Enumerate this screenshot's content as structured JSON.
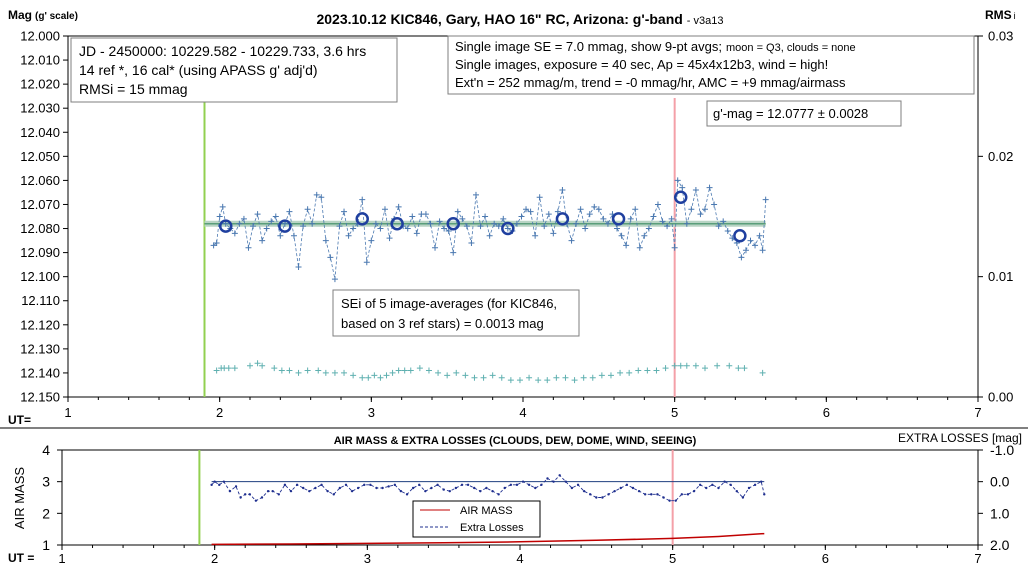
{
  "colors": {
    "accent_green": "#92d050",
    "accent_red": "#f4a0a8",
    "trend_green": "#5a9e7a",
    "data_blue": "#4a78b0",
    "avg_circle": "#1f3f9f",
    "check_teal": "#5fb0b0",
    "airmass_red": "#c00000",
    "loss_blue": "#1f2f8f"
  },
  "top_chart": {
    "title_main": "2023.10.12 KIC846, Gary, HAO 16\" RC, Arizona: g'-band",
    "title_suffix": "- v3a13",
    "y_label": "Mag",
    "y_label_suffix": "(g' scale)",
    "y2_label": "RMS",
    "y2_label_suffix": "i",
    "x_label": "UT=",
    "box_left": [
      "JD - 2450000: 10229.582 - 10229.733, 3.6 hrs",
      "14 ref *, 16 cal* (using APASS g' adj'd)",
      "RMSi = 15 mmag"
    ],
    "box_right_line1": "Single image SE = 7.0 mmag, show  9-pt avgs;",
    "box_right_line1_small": "moon = Q3, clouds = none",
    "box_right_lines": [
      "Single images, exposure = 40 sec, Ap = 45x4x12b3, wind = high!",
      "Ext'n = 252 mmag/m, trend = -0 mmag/hr, AMC = +9 mmag/airmass"
    ],
    "box_mag": "g'-mag = 12.0777 ± 0.0028",
    "box_sei": [
      "SEi of 5 image-averages (for KIC846,",
      "based on 3 ref stars) = 0.0013 mag"
    ]
  },
  "bottom_chart": {
    "title": "AIR MASS & EXTRA LOSSES (CLOUDS, DEW, DOME, WIND, SEEING)",
    "y_label": "AIR MASS",
    "y2_label": "EXTRA LOSSES [mag]",
    "x_label": "UT =",
    "legend": [
      "AIR MASS",
      "Extra Losses"
    ]
  },
  "chart_data": [
    {
      "type": "scatter",
      "title": "2023.10.12 KIC846, Gary, HAO 16\" RC, Arizona: g'-band",
      "xlabel": "UT=",
      "ylabel": "Mag (g' scale)",
      "y2label": "RMSi",
      "xlim": [
        1,
        7
      ],
      "ylim": [
        12.15,
        12.0
      ],
      "y2lim": [
        0,
        0.03
      ],
      "x_ticks": [
        "1",
        "2",
        "3",
        "4",
        "5",
        "6",
        "7"
      ],
      "y_ticks": [
        "12.000",
        "12.010",
        "12.020",
        "12.030",
        "12.040",
        "12.050",
        "12.060",
        "12.070",
        "12.080",
        "12.090",
        "12.100",
        "12.110",
        "12.120",
        "12.130",
        "12.140",
        "12.150"
      ],
      "y2_ticks": [
        "0.00",
        "0.01",
        "0.02",
        "0.03"
      ],
      "vlines": [
        1.9,
        5.0
      ],
      "trend": {
        "x": [
          1.9,
          5.6
        ],
        "y": [
          12.078,
          12.078
        ]
      },
      "series": [
        {
          "name": "single images",
          "x": [
            1.96,
            1.98,
            2.0,
            2.02,
            2.04,
            2.07,
            2.1,
            2.13,
            2.16,
            2.19,
            2.22,
            2.25,
            2.28,
            2.31,
            2.34,
            2.37,
            2.4,
            2.43,
            2.46,
            2.49,
            2.52,
            2.55,
            2.58,
            2.61,
            2.64,
            2.67,
            2.7,
            2.73,
            2.76,
            2.79,
            2.82,
            2.85,
            2.88,
            2.91,
            2.94,
            2.97,
            3.0,
            3.03,
            3.06,
            3.09,
            3.12,
            3.15,
            3.18,
            3.21,
            3.24,
            3.27,
            3.3,
            3.33,
            3.36,
            3.39,
            3.42,
            3.45,
            3.48,
            3.51,
            3.54,
            3.57,
            3.6,
            3.63,
            3.66,
            3.69,
            3.72,
            3.75,
            3.78,
            3.81,
            3.84,
            3.87,
            3.9,
            3.93,
            3.96,
            3.99,
            4.02,
            4.05,
            4.08,
            4.11,
            4.14,
            4.17,
            4.2,
            4.23,
            4.26,
            4.29,
            4.32,
            4.35,
            4.38,
            4.41,
            4.44,
            4.47,
            4.5,
            4.53,
            4.56,
            4.59,
            4.62,
            4.65,
            4.68,
            4.71,
            4.74,
            4.77,
            4.8,
            4.83,
            4.86,
            4.89,
            4.92,
            4.95,
            4.98,
            5.0,
            5.02,
            5.05,
            5.08,
            5.11,
            5.14,
            5.17,
            5.2,
            5.23,
            5.26,
            5.29,
            5.32,
            5.35,
            5.38,
            5.41,
            5.44,
            5.47,
            5.5,
            5.53,
            5.56,
            5.58,
            5.6
          ],
          "y": [
            12.087,
            12.086,
            12.075,
            12.071,
            12.078,
            12.08,
            12.082,
            12.078,
            12.076,
            12.088,
            12.079,
            12.074,
            12.085,
            12.08,
            12.077,
            12.075,
            12.083,
            12.078,
            12.073,
            12.083,
            12.096,
            12.079,
            12.072,
            12.078,
            12.066,
            12.067,
            12.085,
            12.092,
            12.101,
            12.079,
            12.073,
            12.083,
            12.08,
            12.078,
            12.068,
            12.094,
            12.085,
            12.078,
            12.08,
            12.072,
            12.084,
            12.076,
            12.071,
            12.079,
            12.08,
            12.075,
            12.082,
            12.074,
            12.074,
            12.078,
            12.088,
            12.077,
            12.08,
            12.081,
            12.09,
            12.073,
            12.076,
            12.079,
            12.086,
            12.066,
            12.079,
            12.075,
            12.083,
            12.078,
            12.079,
            12.076,
            12.08,
            12.081,
            12.078,
            12.075,
            12.072,
            12.073,
            12.083,
            12.067,
            12.079,
            12.074,
            12.082,
            12.073,
            12.064,
            12.078,
            12.085,
            12.078,
            12.072,
            12.08,
            12.074,
            12.071,
            12.072,
            12.076,
            12.078,
            12.074,
            12.08,
            12.083,
            12.087,
            12.076,
            12.072,
            12.088,
            12.083,
            12.08,
            12.075,
            12.07,
            12.077,
            12.079,
            12.076,
            12.088,
            12.06,
            12.063,
            12.078,
            12.072,
            12.064,
            12.074,
            12.072,
            12.063,
            12.07,
            12.079,
            12.077,
            12.081,
            12.084,
            12.086,
            12.092,
            12.089,
            12.085,
            12.087,
            12.083,
            12.089,
            12.068
          ]
        },
        {
          "name": "9-pt avgs",
          "x": [
            2.04,
            2.43,
            2.94,
            3.17,
            3.54,
            3.9,
            4.26,
            4.63,
            5.04,
            5.43
          ],
          "y": [
            12.079,
            12.079,
            12.076,
            12.078,
            12.078,
            12.08,
            12.076,
            12.076,
            12.067,
            12.083
          ]
        },
        {
          "name": "check star",
          "x": [
            1.98,
            2.01,
            2.03,
            2.06,
            2.1,
            2.2,
            2.25,
            2.28,
            2.36,
            2.41,
            2.46,
            2.52,
            2.58,
            2.65,
            2.7,
            2.76,
            2.82,
            2.88,
            2.94,
            2.98,
            3.02,
            3.06,
            3.1,
            3.14,
            3.18,
            3.22,
            3.26,
            3.32,
            3.38,
            3.44,
            3.5,
            3.56,
            3.62,
            3.68,
            3.74,
            3.8,
            3.86,
            3.92,
            3.98,
            4.04,
            4.1,
            4.16,
            4.22,
            4.28,
            4.34,
            4.4,
            4.46,
            4.52,
            4.58,
            4.64,
            4.7,
            4.76,
            4.82,
            4.88,
            4.94,
            5.0,
            5.04,
            5.08,
            5.14,
            5.2,
            5.28,
            5.36,
            5.42,
            5.46,
            5.58
          ],
          "y": [
            12.139,
            12.138,
            12.138,
            12.138,
            12.138,
            12.137,
            12.136,
            12.137,
            12.138,
            12.139,
            12.139,
            12.14,
            12.139,
            12.139,
            12.14,
            12.14,
            12.14,
            12.141,
            12.142,
            12.142,
            12.141,
            12.142,
            12.141,
            12.14,
            12.139,
            12.139,
            12.139,
            12.138,
            12.139,
            12.14,
            12.141,
            12.14,
            12.141,
            12.142,
            12.142,
            12.141,
            12.142,
            12.143,
            12.143,
            12.142,
            12.143,
            12.143,
            12.142,
            12.142,
            12.143,
            12.142,
            12.142,
            12.141,
            12.141,
            12.14,
            12.14,
            12.139,
            12.139,
            12.139,
            12.138,
            12.137,
            12.137,
            12.137,
            12.137,
            12.138,
            12.137,
            12.137,
            12.138,
            12.138,
            12.14
          ]
        }
      ]
    },
    {
      "type": "line",
      "title": "AIR MASS & EXTRA LOSSES (CLOUDS, DEW, DOME, WIND, SEEING)",
      "xlabel": "UT =",
      "ylabel": "AIR MASS",
      "y2label": "EXTRA LOSSES [mag]",
      "xlim": [
        1,
        7
      ],
      "ylim": [
        1,
        4
      ],
      "y2lim": [
        2.0,
        -1.0
      ],
      "x_ticks": [
        "1",
        "2",
        "3",
        "4",
        "5",
        "6",
        "7"
      ],
      "y_ticks": [
        "1",
        "2",
        "3",
        "4"
      ],
      "y2_ticks": [
        "-1.0",
        "0.0",
        "1.0",
        "2.0"
      ],
      "vlines": [
        1.9,
        5.0
      ],
      "legend": "center",
      "series": [
        {
          "name": "AIR MASS",
          "axis": "left",
          "x": [
            1.98,
            2.5,
            3.0,
            3.5,
            4.0,
            4.5,
            5.0,
            5.3,
            5.6
          ],
          "y": [
            1.02,
            1.03,
            1.05,
            1.07,
            1.1,
            1.15,
            1.21,
            1.27,
            1.36
          ]
        },
        {
          "name": "Extra Losses",
          "axis": "right",
          "x": [
            1.98,
            2.0,
            2.03,
            2.06,
            2.1,
            2.14,
            2.17,
            2.2,
            2.23,
            2.27,
            2.31,
            2.35,
            2.38,
            2.42,
            2.46,
            2.5,
            2.54,
            2.58,
            2.62,
            2.66,
            2.7,
            2.74,
            2.78,
            2.82,
            2.86,
            2.9,
            2.94,
            2.98,
            3.02,
            3.06,
            3.1,
            3.14,
            3.18,
            3.22,
            3.26,
            3.3,
            3.34,
            3.38,
            3.42,
            3.46,
            3.5,
            3.54,
            3.58,
            3.62,
            3.66,
            3.7,
            3.74,
            3.78,
            3.82,
            3.86,
            3.9,
            3.94,
            3.98,
            4.02,
            4.06,
            4.1,
            4.14,
            4.18,
            4.22,
            4.26,
            4.3,
            4.34,
            4.38,
            4.42,
            4.46,
            4.5,
            4.54,
            4.58,
            4.62,
            4.66,
            4.7,
            4.74,
            4.78,
            4.82,
            4.86,
            4.9,
            4.94,
            4.98,
            5.02,
            5.06,
            5.1,
            5.14,
            5.18,
            5.22,
            5.26,
            5.3,
            5.34,
            5.38,
            5.42,
            5.46,
            5.5,
            5.54,
            5.58,
            5.6
          ],
          "y": [
            0.1,
            0.0,
            0.1,
            0.0,
            0.3,
            0.15,
            0.5,
            0.4,
            0.4,
            0.6,
            0.5,
            0.3,
            0.3,
            0.4,
            0.1,
            0.3,
            0.1,
            0.2,
            0.3,
            0.2,
            0.1,
            0.3,
            0.4,
            0.2,
            0.1,
            0.3,
            0.2,
            0.1,
            0.1,
            0.2,
            0.2,
            0.15,
            0.1,
            0.3,
            0.4,
            0.2,
            0.1,
            0.3,
            0.2,
            0.1,
            0.25,
            0.3,
            0.2,
            0.1,
            0.1,
            0.2,
            0.3,
            0.2,
            0.3,
            0.4,
            0.2,
            0.1,
            0.1,
            0.0,
            0.1,
            0.2,
            0.1,
            -0.1,
            0.0,
            -0.2,
            0.0,
            0.2,
            0.1,
            0.3,
            0.4,
            0.5,
            0.5,
            0.4,
            0.3,
            0.2,
            0.1,
            0.2,
            0.3,
            0.4,
            0.4,
            0.4,
            0.5,
            0.6,
            0.6,
            0.4,
            0.4,
            0.3,
            0.1,
            0.2,
            0.1,
            0.2,
            0.0,
            0.1,
            0.3,
            0.5,
            0.2,
            0.1,
            0.0,
            0.4
          ]
        }
      ]
    }
  ]
}
